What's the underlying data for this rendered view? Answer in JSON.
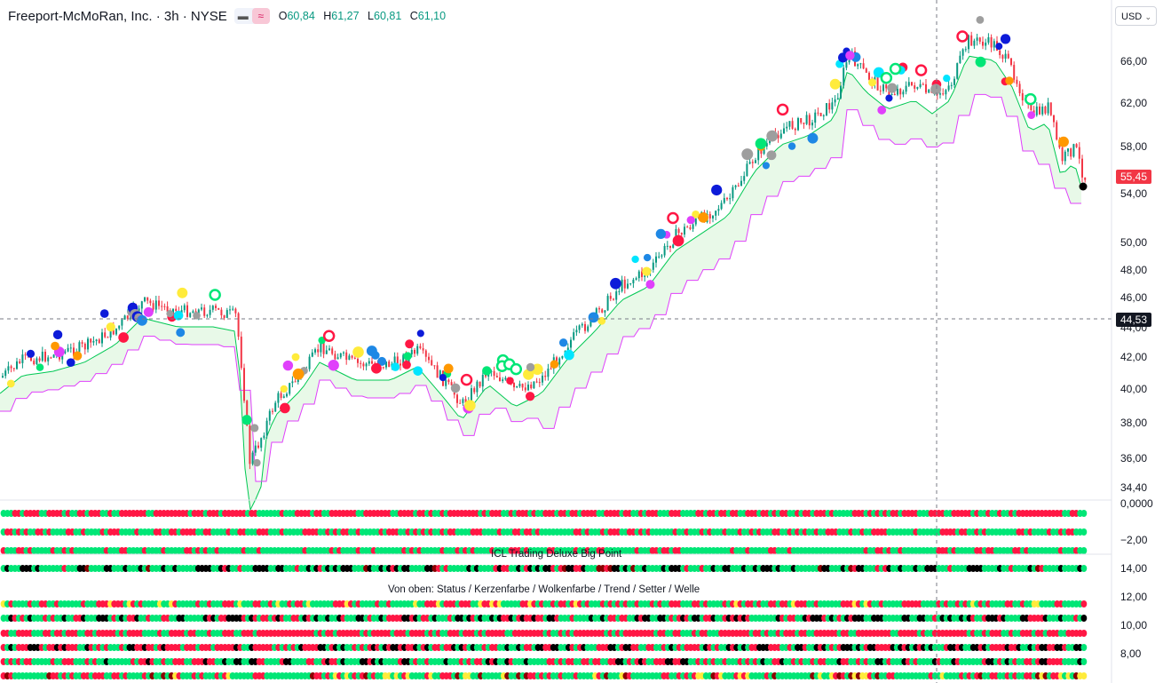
{
  "header": {
    "symbol_title": "Freeport-McMoRan, Inc. · 3h · NYSE",
    "ohlc": [
      {
        "k": "O",
        "v": "60,84"
      },
      {
        "k": "H",
        "v": "61,27"
      },
      {
        "k": "L",
        "v": "60,81"
      },
      {
        "k": "C",
        "v": "61,10"
      }
    ],
    "currency": "USD"
  },
  "price_axis": {
    "ticks": [
      "66,00",
      "62,00",
      "58,00",
      "54,00",
      "50,00",
      "48,00",
      "46,00",
      "44,00",
      "42,00",
      "40,00",
      "38,00",
      "36,00",
      "34,40"
    ],
    "last_price": "55,45",
    "crosshair_price": "44,53"
  },
  "panes": {
    "pane1_axis": [
      "0,0000",
      "−2,00"
    ],
    "pane2_title": "ICL Trading Deluxe Big Point",
    "pane2_axis": [
      "14,00"
    ],
    "pane3_title": "Von oben: Status / Kerzenfarbe / Wolkenfarbe / Trend / Setter / Welle",
    "pane3_axis": [
      "12,00",
      "10,00",
      "8,00"
    ]
  },
  "colors": {
    "up_candle": "#089981",
    "down_candle": "#f23645",
    "cloud_line": "#00c853",
    "band_line": "#e040fb",
    "last_price_tag": "#f23645",
    "crosshair_tag": "#131722"
  }
}
